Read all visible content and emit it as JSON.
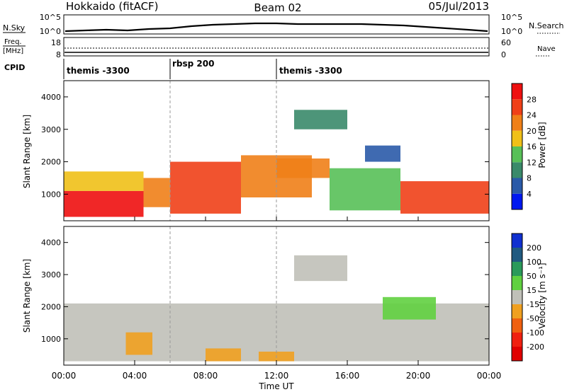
{
  "header": {
    "station": "Hokkaido (fitACF)",
    "beam": "Beam 02",
    "date": "05/Jul/2013"
  },
  "top_panels": {
    "nsky_label": "N.Sky",
    "nsearch_label": "N.Search",
    "noise_ticks": [
      "10^5",
      "10^0"
    ],
    "freq_label": "Freq.",
    "freq_unit": "[MHz]",
    "freq_ticks": [
      "18",
      "8"
    ],
    "nave_label": "Nave",
    "nave_ticks": [
      "60",
      "0"
    ],
    "cpid_label": "CPID"
  },
  "cpid_segments": [
    {
      "label": "themis -3300",
      "start_hour": 0
    },
    {
      "label": "rbsp 200",
      "start_hour": 6
    },
    {
      "label": "themis -3300",
      "start_hour": 12
    }
  ],
  "axes": {
    "x_label": "Time UT",
    "x_ticks": [
      "00:00",
      "04:00",
      "08:00",
      "12:00",
      "16:00",
      "20:00",
      "00:00"
    ],
    "y_label": "Slant Range [km]",
    "y_ticks": [
      "1000",
      "2000",
      "3000",
      "4000"
    ]
  },
  "power_scale": {
    "label": "Power [dB]",
    "ticks": [
      "4",
      "8",
      "12",
      "16",
      "20",
      "24",
      "28"
    ],
    "colors": [
      "#0018f0",
      "#2a5aa8",
      "#3a8a6a",
      "#58c058",
      "#f0c018",
      "#f08018",
      "#f04018",
      "#ee1010"
    ]
  },
  "velocity_scale": {
    "label": "Velocity [m s⁻¹]",
    "ticks": [
      "200",
      "100",
      "50",
      "15",
      "-15",
      "-50",
      "-100",
      "-200"
    ],
    "colors": [
      "#1030d0",
      "#205a80",
      "#2a9a5a",
      "#60d040",
      "#c0c0b8",
      "#f0a020",
      "#f06010",
      "#f02010",
      "#e00000"
    ]
  },
  "chart_data": [
    {
      "type": "heatmap",
      "title": "",
      "xlabel": "Time UT",
      "ylabel": "Slant Range [km]",
      "xlim": [
        0,
        24
      ],
      "ylim": [
        180,
        4500
      ],
      "value_label": "Power [dB]",
      "value_range": [
        0,
        30
      ],
      "grid": false,
      "regions": [
        {
          "t": [
            0,
            4.5
          ],
          "range": [
            300,
            1100
          ],
          "value": 28
        },
        {
          "t": [
            0,
            4.5
          ],
          "range": [
            1100,
            1700
          ],
          "value": 18
        },
        {
          "t": [
            4.5,
            6
          ],
          "range": [
            600,
            1500
          ],
          "value": 22
        },
        {
          "t": [
            6,
            10
          ],
          "range": [
            400,
            900
          ],
          "value": 26
        },
        {
          "t": [
            6,
            10
          ],
          "range": [
            900,
            2000
          ],
          "value": 24
        },
        {
          "t": [
            10,
            14
          ],
          "range": [
            900,
            2200
          ],
          "value": 20
        },
        {
          "t": [
            12,
            15
          ],
          "range": [
            1500,
            2100
          ],
          "value": 20
        },
        {
          "t": [
            15,
            19
          ],
          "range": [
            500,
            1800
          ],
          "value": 12
        },
        {
          "t": [
            19,
            24
          ],
          "range": [
            400,
            1400
          ],
          "value": 24
        },
        {
          "t": [
            13,
            16
          ],
          "range": [
            3000,
            3600
          ],
          "value": 8
        },
        {
          "t": [
            17,
            19
          ],
          "range": [
            2000,
            2500
          ],
          "value": 6
        }
      ]
    },
    {
      "type": "heatmap",
      "title": "",
      "xlabel": "Time UT",
      "ylabel": "Slant Range [km]",
      "xlim": [
        0,
        24
      ],
      "ylim": [
        180,
        4500
      ],
      "value_label": "Velocity [m s⁻¹]",
      "value_range": [
        -250,
        250
      ],
      "grid": false,
      "regions": [
        {
          "t": [
            0,
            24
          ],
          "range": [
            300,
            2100
          ],
          "value": 0
        },
        {
          "t": [
            13,
            16
          ],
          "range": [
            2800,
            3600
          ],
          "value": -10
        },
        {
          "t": [
            8,
            10
          ],
          "range": [
            300,
            700
          ],
          "value": -40
        },
        {
          "t": [
            18,
            21
          ],
          "range": [
            1600,
            2300
          ],
          "value": 40
        },
        {
          "t": [
            3.5,
            5
          ],
          "range": [
            500,
            1200
          ],
          "value": -40
        },
        {
          "t": [
            11,
            13
          ],
          "range": [
            300,
            600
          ],
          "value": -40
        }
      ]
    }
  ]
}
